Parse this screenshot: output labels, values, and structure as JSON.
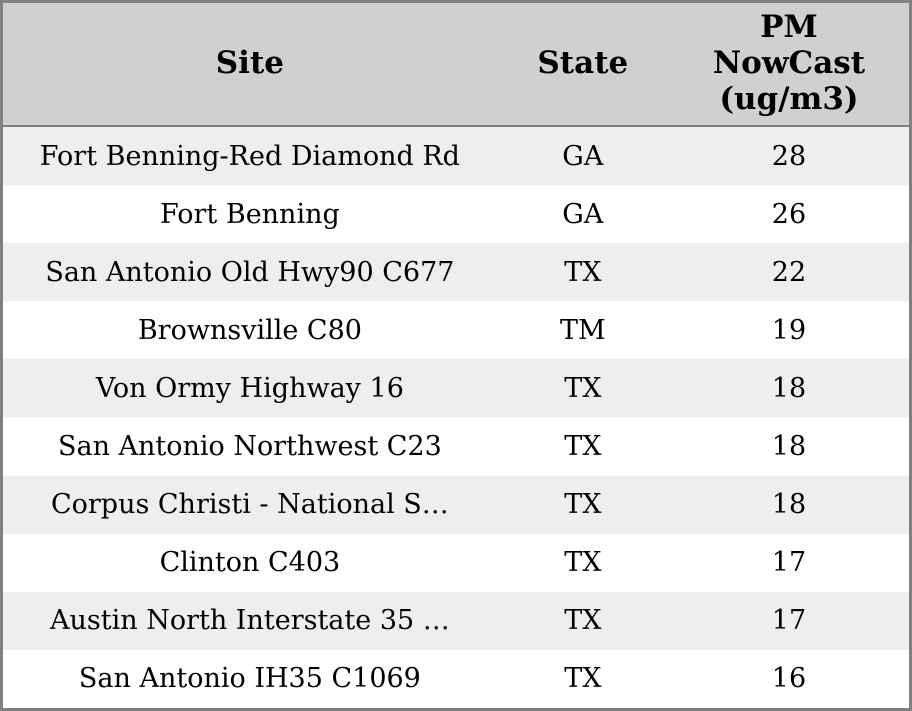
{
  "colors": {
    "outer_border": "#808080",
    "header_bg": "#d0d0d0",
    "header_separator": "#7d7d7d",
    "row_odd_bg": "#eeeeee",
    "row_even_bg": "#ffffff",
    "text": "#000000"
  },
  "table": {
    "headers": {
      "site": "Site",
      "state": "State",
      "pm": "PM\nNowCast\n(ug/m3)"
    },
    "rows": [
      {
        "site": "Fort Benning-Red Diamond Rd",
        "state": "GA",
        "pm": "28"
      },
      {
        "site": "Fort Benning",
        "state": "GA",
        "pm": "26"
      },
      {
        "site": "San Antonio Old Hwy90 C677",
        "state": "TX",
        "pm": "22"
      },
      {
        "site": "Brownsville C80",
        "state": "TM",
        "pm": "19"
      },
      {
        "site": "Von Ormy Highway 16",
        "state": "TX",
        "pm": "18"
      },
      {
        "site": "San Antonio Northwest C23",
        "state": "TX",
        "pm": "18"
      },
      {
        "site": "Corpus Christi - National S…",
        "state": "TX",
        "pm": "18"
      },
      {
        "site": "Clinton C403",
        "state": "TX",
        "pm": "17"
      },
      {
        "site": "Austin North Interstate 35 …",
        "state": "TX",
        "pm": "17"
      },
      {
        "site": "San Antonio IH35 C1069",
        "state": "TX",
        "pm": "16"
      }
    ]
  },
  "chart_data": {
    "type": "table",
    "columns": [
      "Site",
      "State",
      "PM NowCast (ug/m3)"
    ],
    "rows": [
      [
        "Fort Benning-Red Diamond Rd",
        "GA",
        28
      ],
      [
        "Fort Benning",
        "GA",
        26
      ],
      [
        "San Antonio Old Hwy90 C677",
        "TX",
        22
      ],
      [
        "Brownsville C80",
        "TM",
        19
      ],
      [
        "Von Ormy Highway 16",
        "TX",
        18
      ],
      [
        "San Antonio Northwest C23",
        "TX",
        18
      ],
      [
        "Corpus Christi - National S…",
        "TX",
        18
      ],
      [
        "Clinton C403",
        "TX",
        17
      ],
      [
        "Austin North Interstate 35 …",
        "TX",
        17
      ],
      [
        "San Antonio IH35 C1069",
        "TX",
        16
      ]
    ],
    "title": "",
    "notes": "Sorted descending by PM NowCast (ug/m3); alternating-striped table, centered cells"
  }
}
